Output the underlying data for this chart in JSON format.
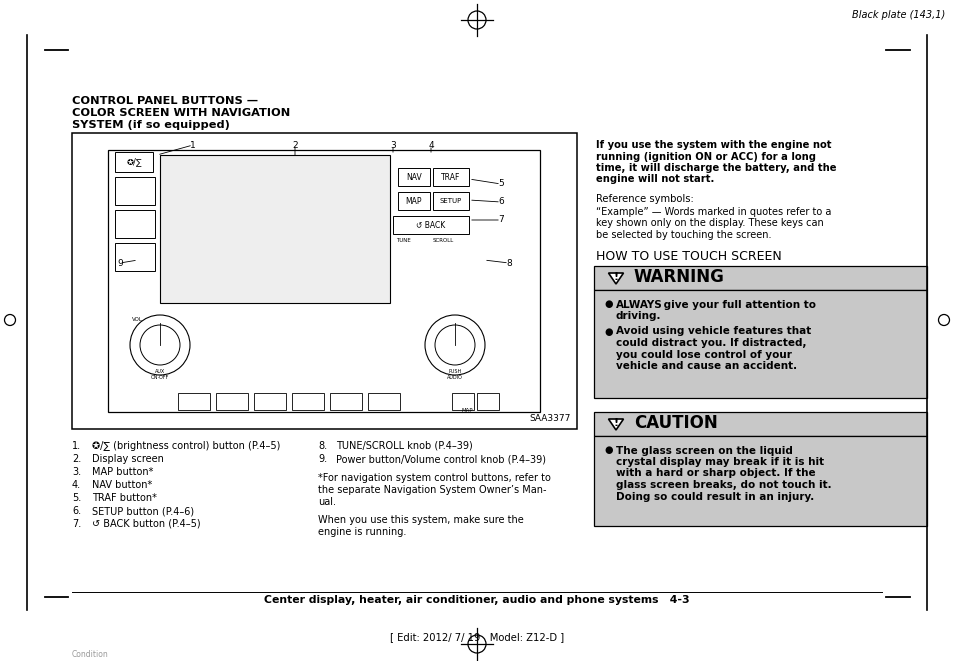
{
  "bg_color": "#ffffff",
  "page_title_line1": "CONTROL PANEL BUTTONS —",
  "page_title_line2": "COLOR SCREEN WITH NAVIGATION",
  "page_title_line3": "SYSTEM (if so equipped)",
  "header_text": "Black plate (143,1)",
  "how_to_use": "HOW TO USE TOUCH SCREEN",
  "warning_title": "WARNING",
  "caution_title": "CAUTION",
  "right_col_lines": [
    "If you use the system with the engine not",
    "running (ignition ON or ACC) for a long",
    "time, it will discharge the battery, and the",
    "engine will not start."
  ],
  "ref_symbols": "Reference symbols:",
  "example_lines": [
    "“Example” — Words marked in quotes refer to a",
    "key shown only on the display. These keys can",
    "be selected by touching the screen."
  ],
  "warn_bullet1_bold": "ALWAYS",
  "warn_bullet1_rest": " give your full attention to",
  "warn_bullet1_line2": "driving.",
  "warn_bullet2_lines": [
    "Avoid using vehicle features that",
    "could distract you. If distracted,",
    "you could lose control of your",
    "vehicle and cause an accident."
  ],
  "caut_bullet_lines": [
    "The glass screen on the liquid",
    "crystal display may break if it is hit",
    "with a hard or sharp object. If the",
    "glass screen breaks, do not touch it.",
    "Doing so could result in an injury."
  ],
  "list_left": [
    [
      "1.",
      "✪/∑ (brightness control) button (P.4–5)"
    ],
    [
      "2.",
      "Display screen"
    ],
    [
      "3.",
      "MAP button*"
    ],
    [
      "4.",
      "NAV button*"
    ],
    [
      "5.",
      "TRAF button*"
    ],
    [
      "6.",
      "SETUP button (P.4–6)"
    ],
    [
      "7.",
      "↺ BACK button (P.4–5)"
    ]
  ],
  "list_right": [
    [
      "8.",
      "TUNE/SCROLL knob (P.4–39)"
    ],
    [
      "9.",
      "Power button/Volume control knob (P.4–39)"
    ]
  ],
  "footnote_lines": [
    "*For navigation system control buttons, refer to",
    "the separate Navigation System Owner’s Man-",
    "ual."
  ],
  "when_lines": [
    "When you use this system, make sure the",
    "engine is running."
  ],
  "bottom_text": "Center display, heater, air conditioner, audio and phone systems   4-3",
  "edit_text": "[ Edit: 2012/ 7/ 19   Model: Z12-D ]",
  "condition_text": "Condition",
  "diagram_label": "SAA3377",
  "warning_bg": "#c8c8c8",
  "caution_bg": "#c8c8c8"
}
